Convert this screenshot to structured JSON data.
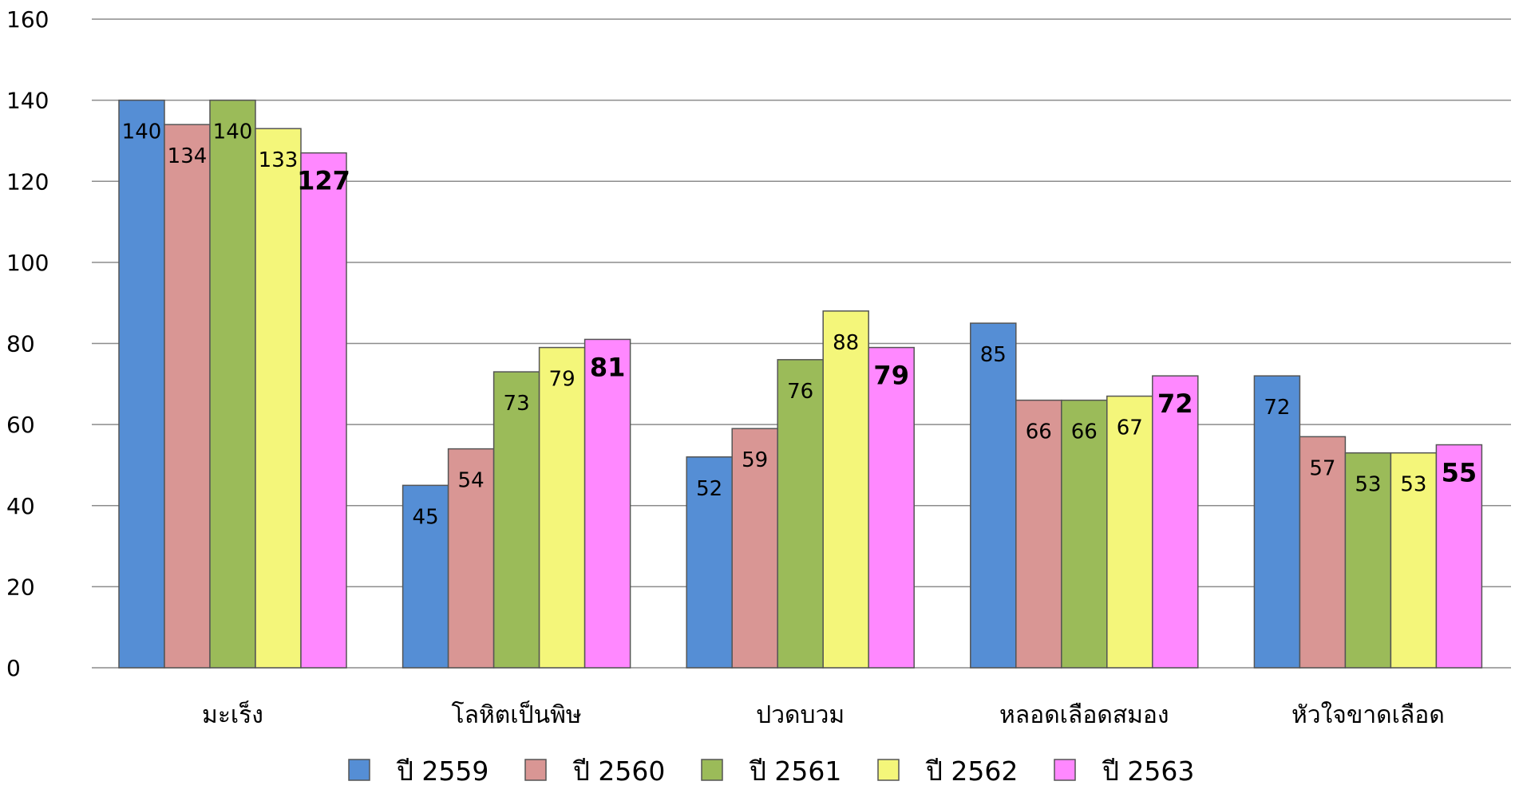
{
  "chart_data": {
    "type": "bar",
    "title": "",
    "xlabel": "",
    "ylabel": "",
    "ylim": [
      0,
      160
    ],
    "yticks": [
      0,
      20,
      40,
      60,
      80,
      100,
      120,
      140,
      160
    ],
    "grid": true,
    "legend_position": "bottom",
    "categories": [
      "มะเร็ง",
      "โลหิตเป็นพิษ",
      "ปวดบวม",
      "หลอดเลือดสมอง",
      "หัวใจขาดเลือด"
    ],
    "series": [
      {
        "name": "ปี 2559",
        "color": "#558ed5",
        "values": [
          140,
          45,
          52,
          85,
          72
        ],
        "labels": [
          "140",
          "45",
          "52",
          "85",
          "72"
        ]
      },
      {
        "name": "ปี 2560",
        "color": "#d99694",
        "values": [
          134,
          54,
          59,
          66,
          57
        ],
        "labels": [
          "134",
          "54",
          "59",
          "66",
          "57"
        ]
      },
      {
        "name": "ปี 2561",
        "color": "#9bbb59",
        "values": [
          140,
          73,
          76,
          66,
          53
        ],
        "labels": [
          "140",
          "73",
          "76",
          "66",
          "53"
        ]
      },
      {
        "name": "ปี 2562",
        "color": "#f4f67a",
        "values": [
          133,
          79,
          88,
          67,
          53
        ],
        "labels": [
          "133",
          "79",
          "88",
          "67",
          "53"
        ]
      },
      {
        "name": "ปี 2563",
        "color": "#ff88ff",
        "values": [
          127,
          81,
          79,
          72,
          55
        ],
        "labels": [
          "127",
          "81",
          "79",
          "72",
          "55"
        ],
        "bold_labels": true
      }
    ]
  }
}
